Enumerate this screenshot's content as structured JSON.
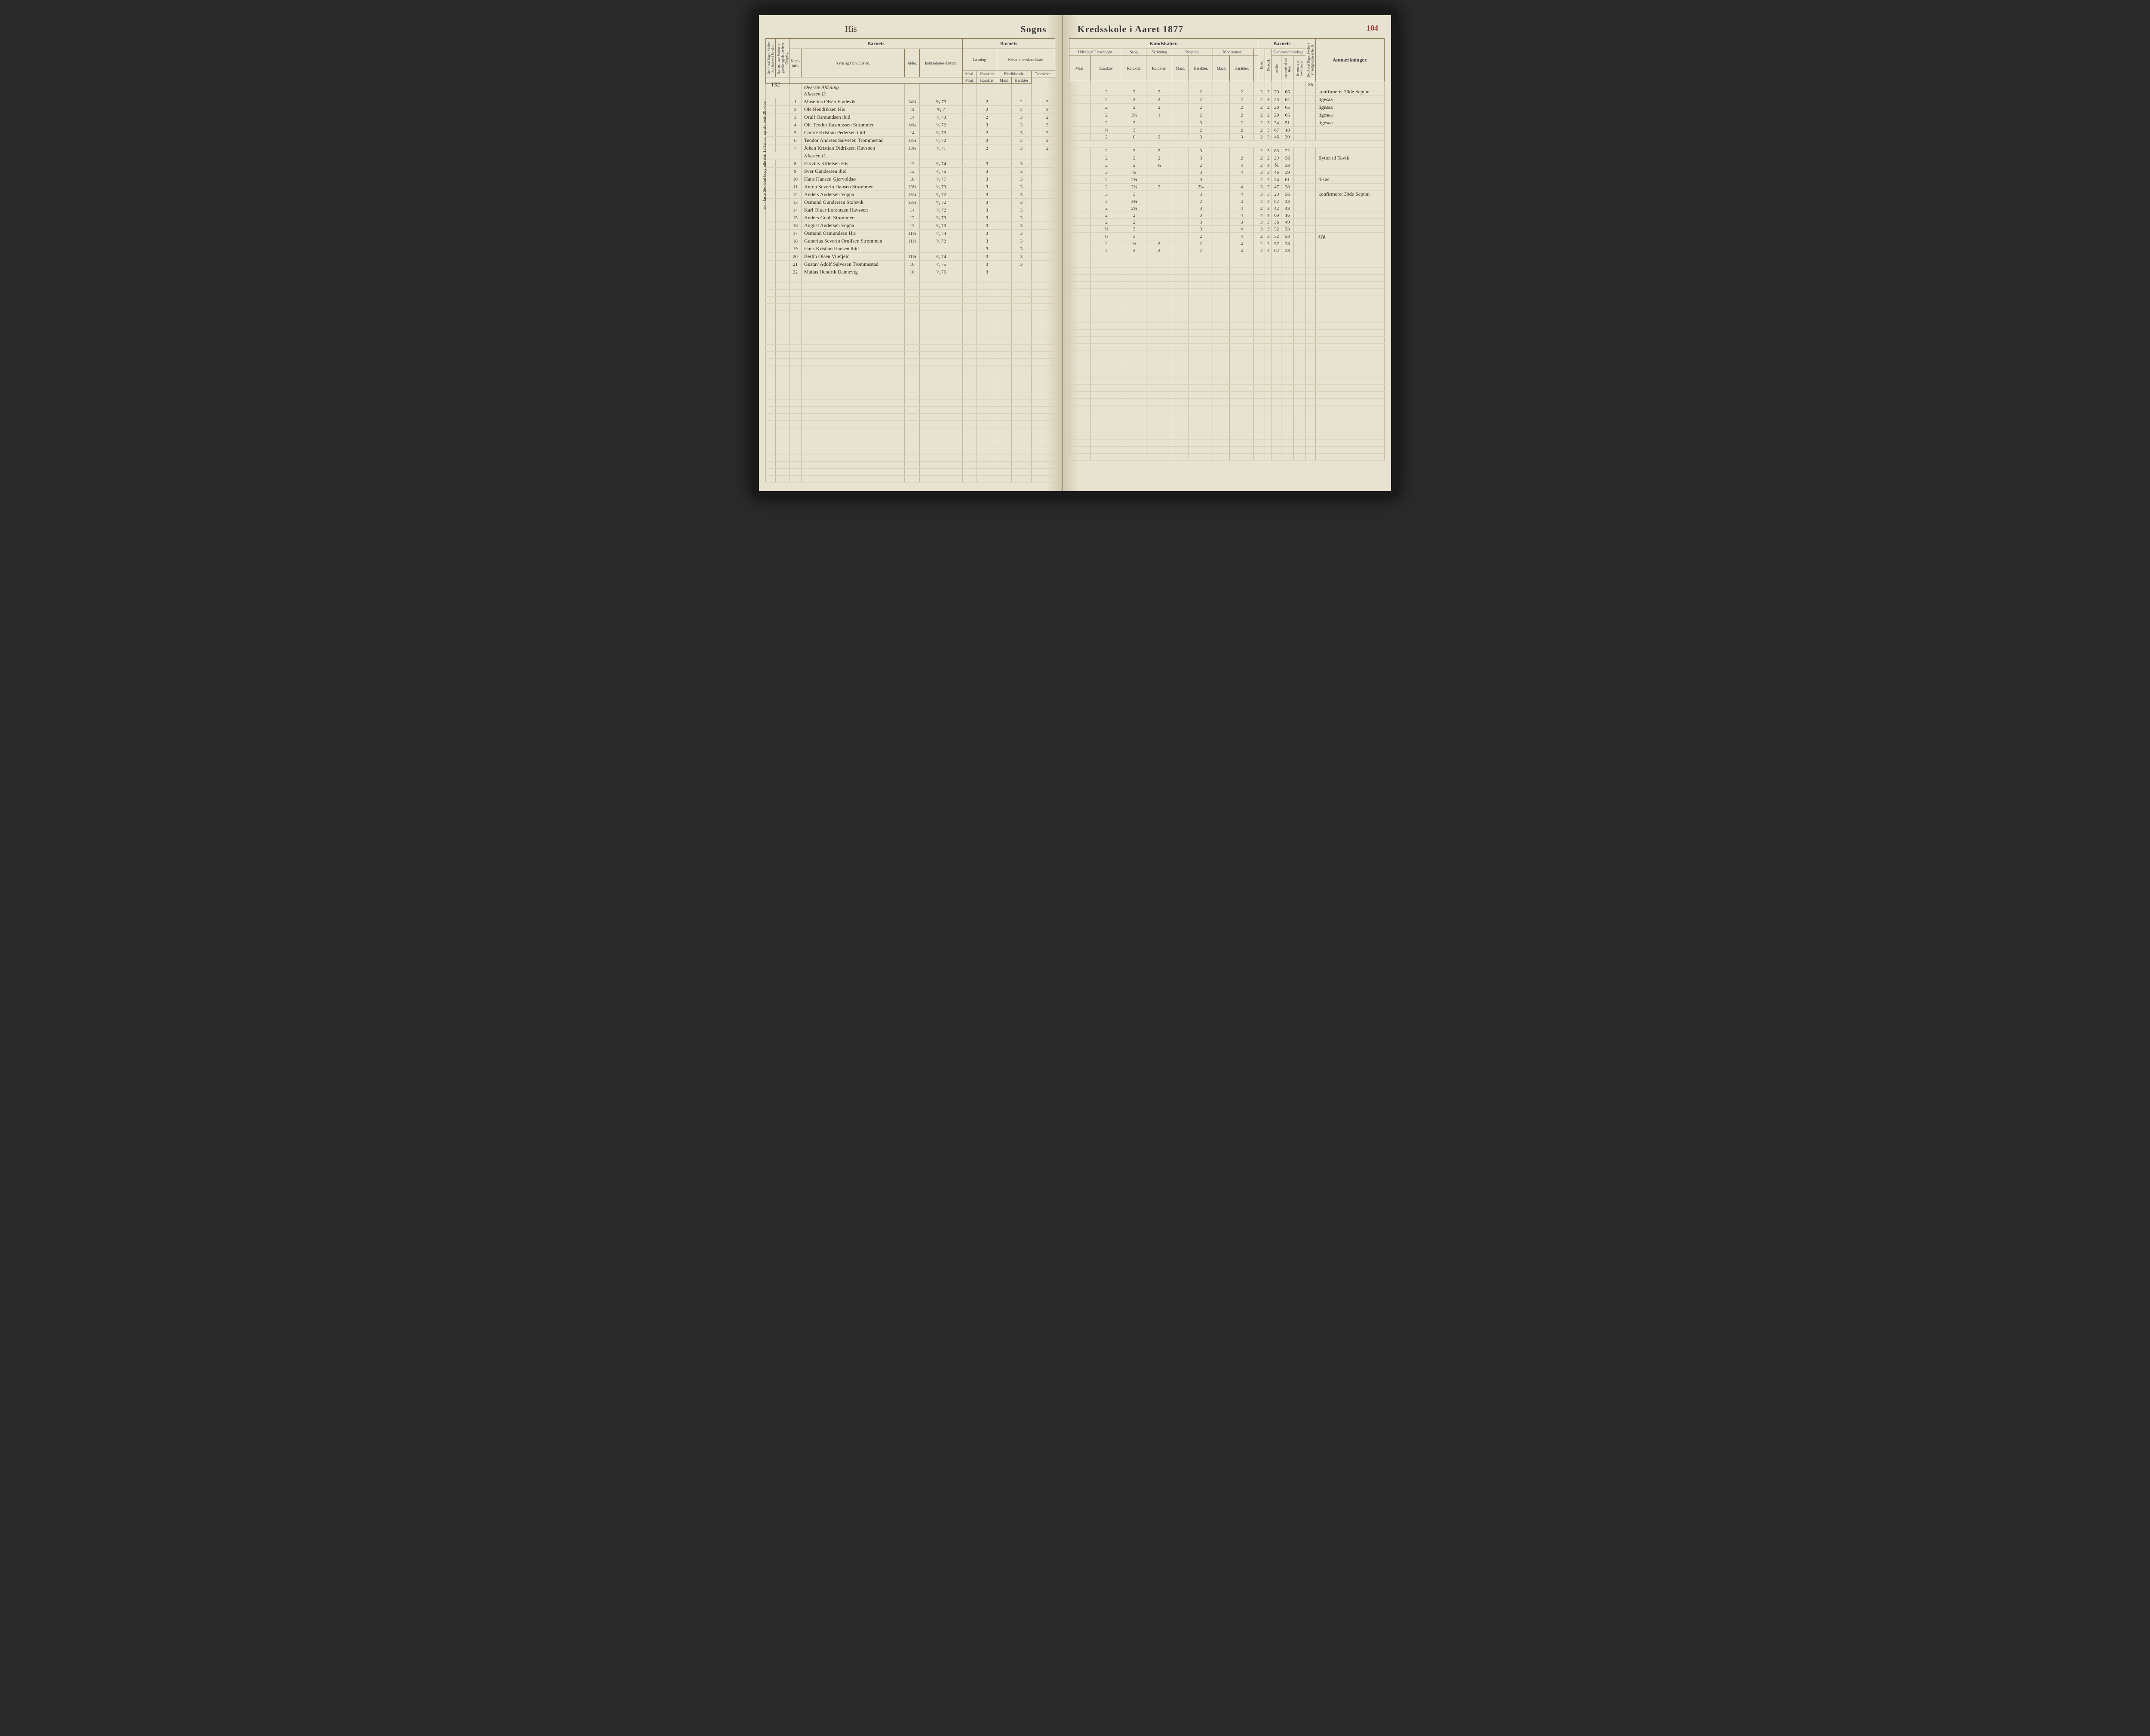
{
  "meta": {
    "page_number": "104",
    "parish_name": "His",
    "title_left": "Sogns",
    "title_right": "Kredsskole i Aaret 18",
    "year_suffix": "77",
    "top_number": "132",
    "side_note": "Den faste Skoletid begyndte den 13 Januar og sluttede 28 Febr.",
    "total_days": "85"
  },
  "headers": {
    "left": {
      "barnets": "Barnets",
      "col_dage": "Det Antal Dage, Skolen skal holdes i Kredsen.",
      "col_datum": "Datum, naar Skolen be­gynder og slutter hver Omgang.",
      "nummer": "Num­mer.",
      "navn": "Navn og Opholdssted.",
      "alder": "Al­der.",
      "indtr": "Indtræ­delses-Datum.",
      "laesning": "Læsning.",
      "kristendom": "Kristendomskundskab.",
      "maal": "Maal.",
      "karakter": "Ka­rak­ter",
      "bibelhistorie": "Bibelhistorie.",
      "troeslaere": "Troeslære."
    },
    "right": {
      "kundskaber": "Kundskaber.",
      "barnets": "Barnets",
      "udvalg": "Udvalg af Læsebogen.",
      "sang": "Sang.",
      "skrivning": "Skriv­ning",
      "regning": "Regning.",
      "modersmaal": "Modersmaal.",
      "maal": "Maal.",
      "karakter": "Ka­rak­ter.",
      "evne": "Evne.",
      "forhold": "Forhold.",
      "skolesogning": "Skolesøgningsdage.",
      "modte": "mødte.",
      "forsomte": "forsømte af det Hele.",
      "lovgrund": "forsømte af lovl.Grund",
      "antal_dage": "Det Antal Dage, Sko­len i Virkeligheden er holdt.",
      "anmaerkninger": "Anmærkninger."
    }
  },
  "sections": [
    {
      "label": "Øverste Afdeling",
      "sublabel": "Klassen D."
    }
  ],
  "rows": [
    {
      "num": "1",
      "name": "Maselius Olsen Flødevik",
      "age": "14¾",
      "date": "⁸⁄₁ 73",
      "l_m": "",
      "l_k": "2",
      "b_m": "",
      "b_k": "2",
      "t_m": "",
      "t_k": "2",
      "u_m": "",
      "u_k": "2",
      "sang": "2",
      "skr": "2",
      "r_m": "",
      "r_k": "2",
      "mm_m": "",
      "mm_k": "2",
      "evne": "2",
      "forh": "2",
      "modte": "20",
      "fors": "65",
      "lov": "",
      "anm": "konfirmeret 30de Septbr."
    },
    {
      "num": "2",
      "name": "Ole Hendriksen His",
      "age": "14",
      "date": "⁹⁄₁ 7",
      "l_m": "",
      "l_k": "2",
      "b_m": "",
      "b_k": "2",
      "t_m": "",
      "t_k": "2",
      "u_m": "",
      "u_k": "2",
      "sang": "2",
      "skr": "2",
      "r_m": "",
      "r_k": "2",
      "mm_m": "",
      "mm_k": "2",
      "evne": "2",
      "forh": "3",
      "modte": "23",
      "fors": "62",
      "lov": "",
      "anm": "ligesaa"
    },
    {
      "num": "3",
      "name": "Orulf Osmundsen ibid",
      "age": "14",
      "date": "²⁄₃ 73",
      "l_m": "",
      "l_k": "2",
      "b_m": "",
      "b_k": "3",
      "t_m": "",
      "t_k": "2",
      "u_m": "",
      "u_k": "2",
      "sang": "2",
      "skr": "2",
      "r_m": "",
      "r_k": "2",
      "mm_m": "",
      "mm_k": "2",
      "evne": "2",
      "forh": "2",
      "modte": "20",
      "fors": "65",
      "lov": "",
      "anm": "ligesaa"
    },
    {
      "num": "4",
      "name": "Ole Teodor Rasmussen Strømmen",
      "age": "14¾",
      "date": "¹⁄₃ 72",
      "l_m": "",
      "l_k": "3",
      "b_m": "",
      "b_k": "3",
      "t_m": "",
      "t_k": "3",
      "u_m": "",
      "u_k": "2",
      "sang": "3¼",
      "skr": "1",
      "r_m": "",
      "r_k": "2",
      "mm_m": "",
      "mm_k": "2",
      "evne": "2",
      "forh": "2",
      "modte": "20",
      "fors": "65",
      "lov": "",
      "anm": "ligesaa"
    },
    {
      "num": "5",
      "name": "Carole Kristian Pedersen ibid",
      "age": "14",
      "date": "²⁄₃ 73",
      "l_m": "",
      "l_k": "2",
      "b_m": "",
      "b_k": "3",
      "t_m": "",
      "t_k": "2",
      "u_m": "",
      "u_k": "2",
      "sang": "2",
      "skr": "",
      "r_m": "",
      "r_k": "3",
      "mm_m": "",
      "mm_k": "2",
      "evne": "2",
      "forh": "3",
      "modte": "34",
      "fors": "51",
      "lov": "",
      "anm": "ligesaa"
    },
    {
      "num": "6",
      "name": "Teodor Andreas Salvesen Trommestad",
      "age": "13¾",
      "date": "¹⁄₃ 72",
      "l_m": "",
      "l_k": "3",
      "b_m": "",
      "b_k": "2",
      "t_m": "",
      "t_k": "2",
      "u_m": "",
      "u_k": "⅔",
      "sang": "3",
      "skr": "",
      "r_m": "",
      "r_k": "2",
      "mm_m": "",
      "mm_k": "2",
      "evne": "2",
      "forh": "3",
      "modte": "67",
      "fors": "18",
      "lov": "",
      "anm": ""
    },
    {
      "num": "7",
      "name": "Johan Kristian Didriksen Havsøen",
      "age": "13¼",
      "date": "³⁄₁ 71",
      "l_m": "",
      "l_k": "2",
      "b_m": "",
      "b_k": "3",
      "t_m": "",
      "t_k": "2",
      "u_m": "",
      "u_k": "2",
      "sang": "0",
      "skr": "2",
      "r_m": "",
      "r_k": "3",
      "mm_m": "",
      "mm_k": "3",
      "evne": "2",
      "forh": "3",
      "modte": "46",
      "fors": "39",
      "lov": "",
      "anm": ""
    },
    {
      "section": "Klassen E."
    },
    {
      "num": "8",
      "name": "Elovius Kittelsen His",
      "age": "12",
      "date": "²⁄₁ 74",
      "l_m": "",
      "l_k": "3",
      "b_m": "",
      "b_k": "3",
      "t_m": "",
      "t_k": "",
      "u_m": "",
      "u_k": "2",
      "sang": "2",
      "skr": "2",
      "r_m": "",
      "r_k": "3",
      "mm_m": "",
      "mm_k": "",
      "evne": "2",
      "forh": "3",
      "modte": "63",
      "fors": "22",
      "lov": "",
      "anm": ""
    },
    {
      "num": "9",
      "name": "Sver Gundersen ibid",
      "age": "12",
      "date": "²⁄₃ 76",
      "l_m": "",
      "l_k": "3",
      "b_m": "",
      "b_k": "3",
      "t_m": "",
      "t_k": "",
      "u_m": "",
      "u_k": "2",
      "sang": "2",
      "skr": "2",
      "r_m": "",
      "r_k": "3",
      "mm_m": "",
      "mm_k": "2",
      "evne": "2",
      "forh": "2",
      "modte": "29",
      "fors": "56",
      "lov": "",
      "anm": "flyttet til Tavik"
    },
    {
      "num": "10",
      "name": "Hans Hansen Gjervoldsø",
      "age": "10",
      "date": "²⁄₁ 77",
      "l_m": "",
      "l_k": "3",
      "b_m": "",
      "b_k": "3",
      "t_m": "",
      "t_k": "",
      "u_m": "",
      "u_k": "2",
      "sang": "2",
      "skr": "¾",
      "r_m": "",
      "r_k": "2",
      "mm_m": "",
      "mm_k": "4",
      "evne": "2",
      "forh": "4",
      "modte": "⅗",
      "fors": "33",
      "lov": "",
      "anm": ""
    },
    {
      "num": "11",
      "name": "Anton Severin Hansen Strømmen",
      "age": "13⅓",
      "date": "¹⁄₃ 73",
      "l_m": "",
      "l_k": "3",
      "b_m": "",
      "b_k": "3",
      "t_m": "",
      "t_k": "",
      "u_m": "",
      "u_k": "3",
      "sang": "⅔",
      "skr": "",
      "r_m": "",
      "r_k": "3",
      "mm_m": "",
      "mm_k": "4",
      "evne": "3",
      "forh": "3",
      "modte": "46",
      "fors": "39",
      "lov": "",
      "anm": ""
    },
    {
      "num": "12",
      "name": "Anders Andersen Voppa",
      "age": "13¾",
      "date": "³⁄₁ 72",
      "l_m": "",
      "l_k": "3",
      "b_m": "",
      "b_k": "3",
      "t_m": "",
      "t_k": "",
      "u_m": "",
      "u_k": "2",
      "sang": "2¼",
      "skr": "",
      "r_m": "",
      "r_k": "3",
      "mm_m": "",
      "mm_k": "",
      "evne": "2",
      "forh": "2",
      "modte": "24",
      "fors": "61",
      "lov": "",
      "anm": "tilsøs."
    },
    {
      "num": "13",
      "name": "Osmund Gundersen Stølsvik",
      "age": "13¾",
      "date": "⁹⁄₁ 72",
      "l_m": "",
      "l_k": "3",
      "b_m": "",
      "b_k": "3",
      "t_m": "",
      "t_k": "",
      "u_m": "",
      "u_k": "2",
      "sang": "2¼",
      "skr": "2",
      "r_m": "",
      "r_k": "2¼",
      "mm_m": "",
      "mm_k": "4",
      "evne": "3",
      "forh": "3",
      "modte": "47",
      "fors": "38",
      "lov": "",
      "anm": ""
    },
    {
      "num": "14",
      "name": "Karl Oluer Lorentzen Havsøen",
      "age": "14",
      "date": "²⁄₃ 72",
      "l_m": "",
      "l_k": "3",
      "b_m": "",
      "b_k": "3",
      "t_m": "",
      "t_k": "",
      "u_m": "",
      "u_k": "3",
      "sang": "3",
      "skr": "",
      "r_m": "",
      "r_k": "3",
      "mm_m": "",
      "mm_k": "4",
      "evne": "3",
      "forh": "3",
      "modte": "29",
      "fors": "56",
      "lov": "",
      "anm": "konfirmeret 30de Septbr."
    },
    {
      "num": "15",
      "name": "Anders Guall Strømmen",
      "age": "12",
      "date": "²⁄₃ 73",
      "l_m": "",
      "l_k": "3",
      "b_m": "",
      "b_k": "3",
      "t_m": "",
      "t_k": "",
      "u_m": "",
      "u_k": "2",
      "sang": "3¼",
      "skr": "",
      "r_m": "",
      "r_k": "2",
      "mm_m": "",
      "mm_k": "4",
      "evne": "2",
      "forh": "2",
      "modte": "62",
      "fors": "23",
      "lov": "",
      "anm": ""
    },
    {
      "num": "16",
      "name": "August Andersen Voppa",
      "age": "13",
      "date": "²⁄₁ 73",
      "l_m": "",
      "l_k": "3",
      "b_m": "",
      "b_k": "3",
      "t_m": "",
      "t_k": "",
      "u_m": "",
      "u_k": "2",
      "sang": "2¼",
      "skr": "",
      "r_m": "",
      "r_k": "3",
      "mm_m": "",
      "mm_k": "4",
      "evne": "2",
      "forh": "3",
      "modte": "42",
      "fors": "43",
      "lov": "",
      "anm": ""
    },
    {
      "num": "17",
      "name": "Osmund Osmundsen His",
      "age": "11¾",
      "date": "¹⁄₃ 74",
      "l_m": "",
      "l_k": "3",
      "b_m": "",
      "b_k": "3",
      "t_m": "",
      "t_k": "",
      "u_m": "",
      "u_k": "2",
      "sang": "2",
      "skr": "",
      "r_m": "",
      "r_k": "3",
      "mm_m": "",
      "mm_k": "4",
      "evne": "4",
      "forh": "4",
      "modte": "69",
      "fors": "16",
      "lov": "",
      "anm": ""
    },
    {
      "num": "18",
      "name": "Gunerius Severin Orulfsen Strømmen",
      "age": "11⅓",
      "date": "²⁄₃ 72",
      "l_m": "",
      "l_k": "3",
      "b_m": "",
      "b_k": "3",
      "t_m": "",
      "t_k": "",
      "u_m": "",
      "u_k": "2",
      "sang": "2",
      "skr": "",
      "r_m": "",
      "r_k": "3",
      "mm_m": "",
      "mm_k": "3",
      "evne": "3",
      "forh": "3",
      "modte": "36",
      "fors": "49",
      "lov": "",
      "anm": ""
    },
    {
      "num": "19",
      "name": "Hans Kristian Hansen ibid",
      "age": "",
      "date": "",
      "l_m": "",
      "l_k": "3",
      "b_m": "",
      "b_k": "3",
      "t_m": "",
      "t_k": "",
      "u_m": "",
      "u_k": "⅔",
      "sang": "3",
      "skr": "",
      "r_m": "",
      "r_k": "3",
      "mm_m": "",
      "mm_k": "4",
      "evne": "3",
      "forh": "3",
      "modte": "52",
      "fors": "33",
      "lov": "",
      "anm": ""
    },
    {
      "num": "20",
      "name": "Berlin Olsen Vilefjeld",
      "age": "11¾",
      "date": "²⁄₃ 74",
      "l_m": "",
      "l_k": "3",
      "b_m": "",
      "b_k": "3",
      "t_m": "",
      "t_k": "",
      "u_m": "",
      "u_k": "⅔",
      "sang": "3",
      "skr": "",
      "r_m": "",
      "r_k": "2",
      "mm_m": "",
      "mm_k": "4",
      "evne": "2",
      "forh": "3",
      "modte": "32",
      "fors": "53",
      "lov": "",
      "anm": "syg"
    },
    {
      "num": "21",
      "name": "Gustav Adolf Salvesen Trommestad",
      "age": "10",
      "date": "³⁄₃ 75",
      "l_m": "",
      "l_k": "3",
      "b_m": "",
      "b_k": "3",
      "t_m": "",
      "t_k": "",
      "u_m": "",
      "u_k": "2",
      "sang": "⅓",
      "skr": "2",
      "r_m": "",
      "r_k": "2",
      "mm_m": "",
      "mm_k": "4",
      "evne": "2",
      "forh": "2",
      "modte": "57",
      "fors": "28",
      "lov": "",
      "anm": ""
    },
    {
      "num": "22",
      "name": "Matias Hendrik Dannevig",
      "age": "10",
      "date": "²⁄₁ 76",
      "l_m": "",
      "l_k": "3",
      "b_m": "",
      "b_k": "",
      "t_m": "",
      "t_k": "",
      "u_m": "",
      "u_k": "2",
      "sang": "2",
      "skr": "2",
      "r_m": "",
      "r_k": "2",
      "mm_m": "",
      "mm_k": "4",
      "evne": "2",
      "forh": "2",
      "modte": "62",
      "fors": "23",
      "lov": "",
      "anm": ""
    }
  ],
  "empty_rows": 30
}
